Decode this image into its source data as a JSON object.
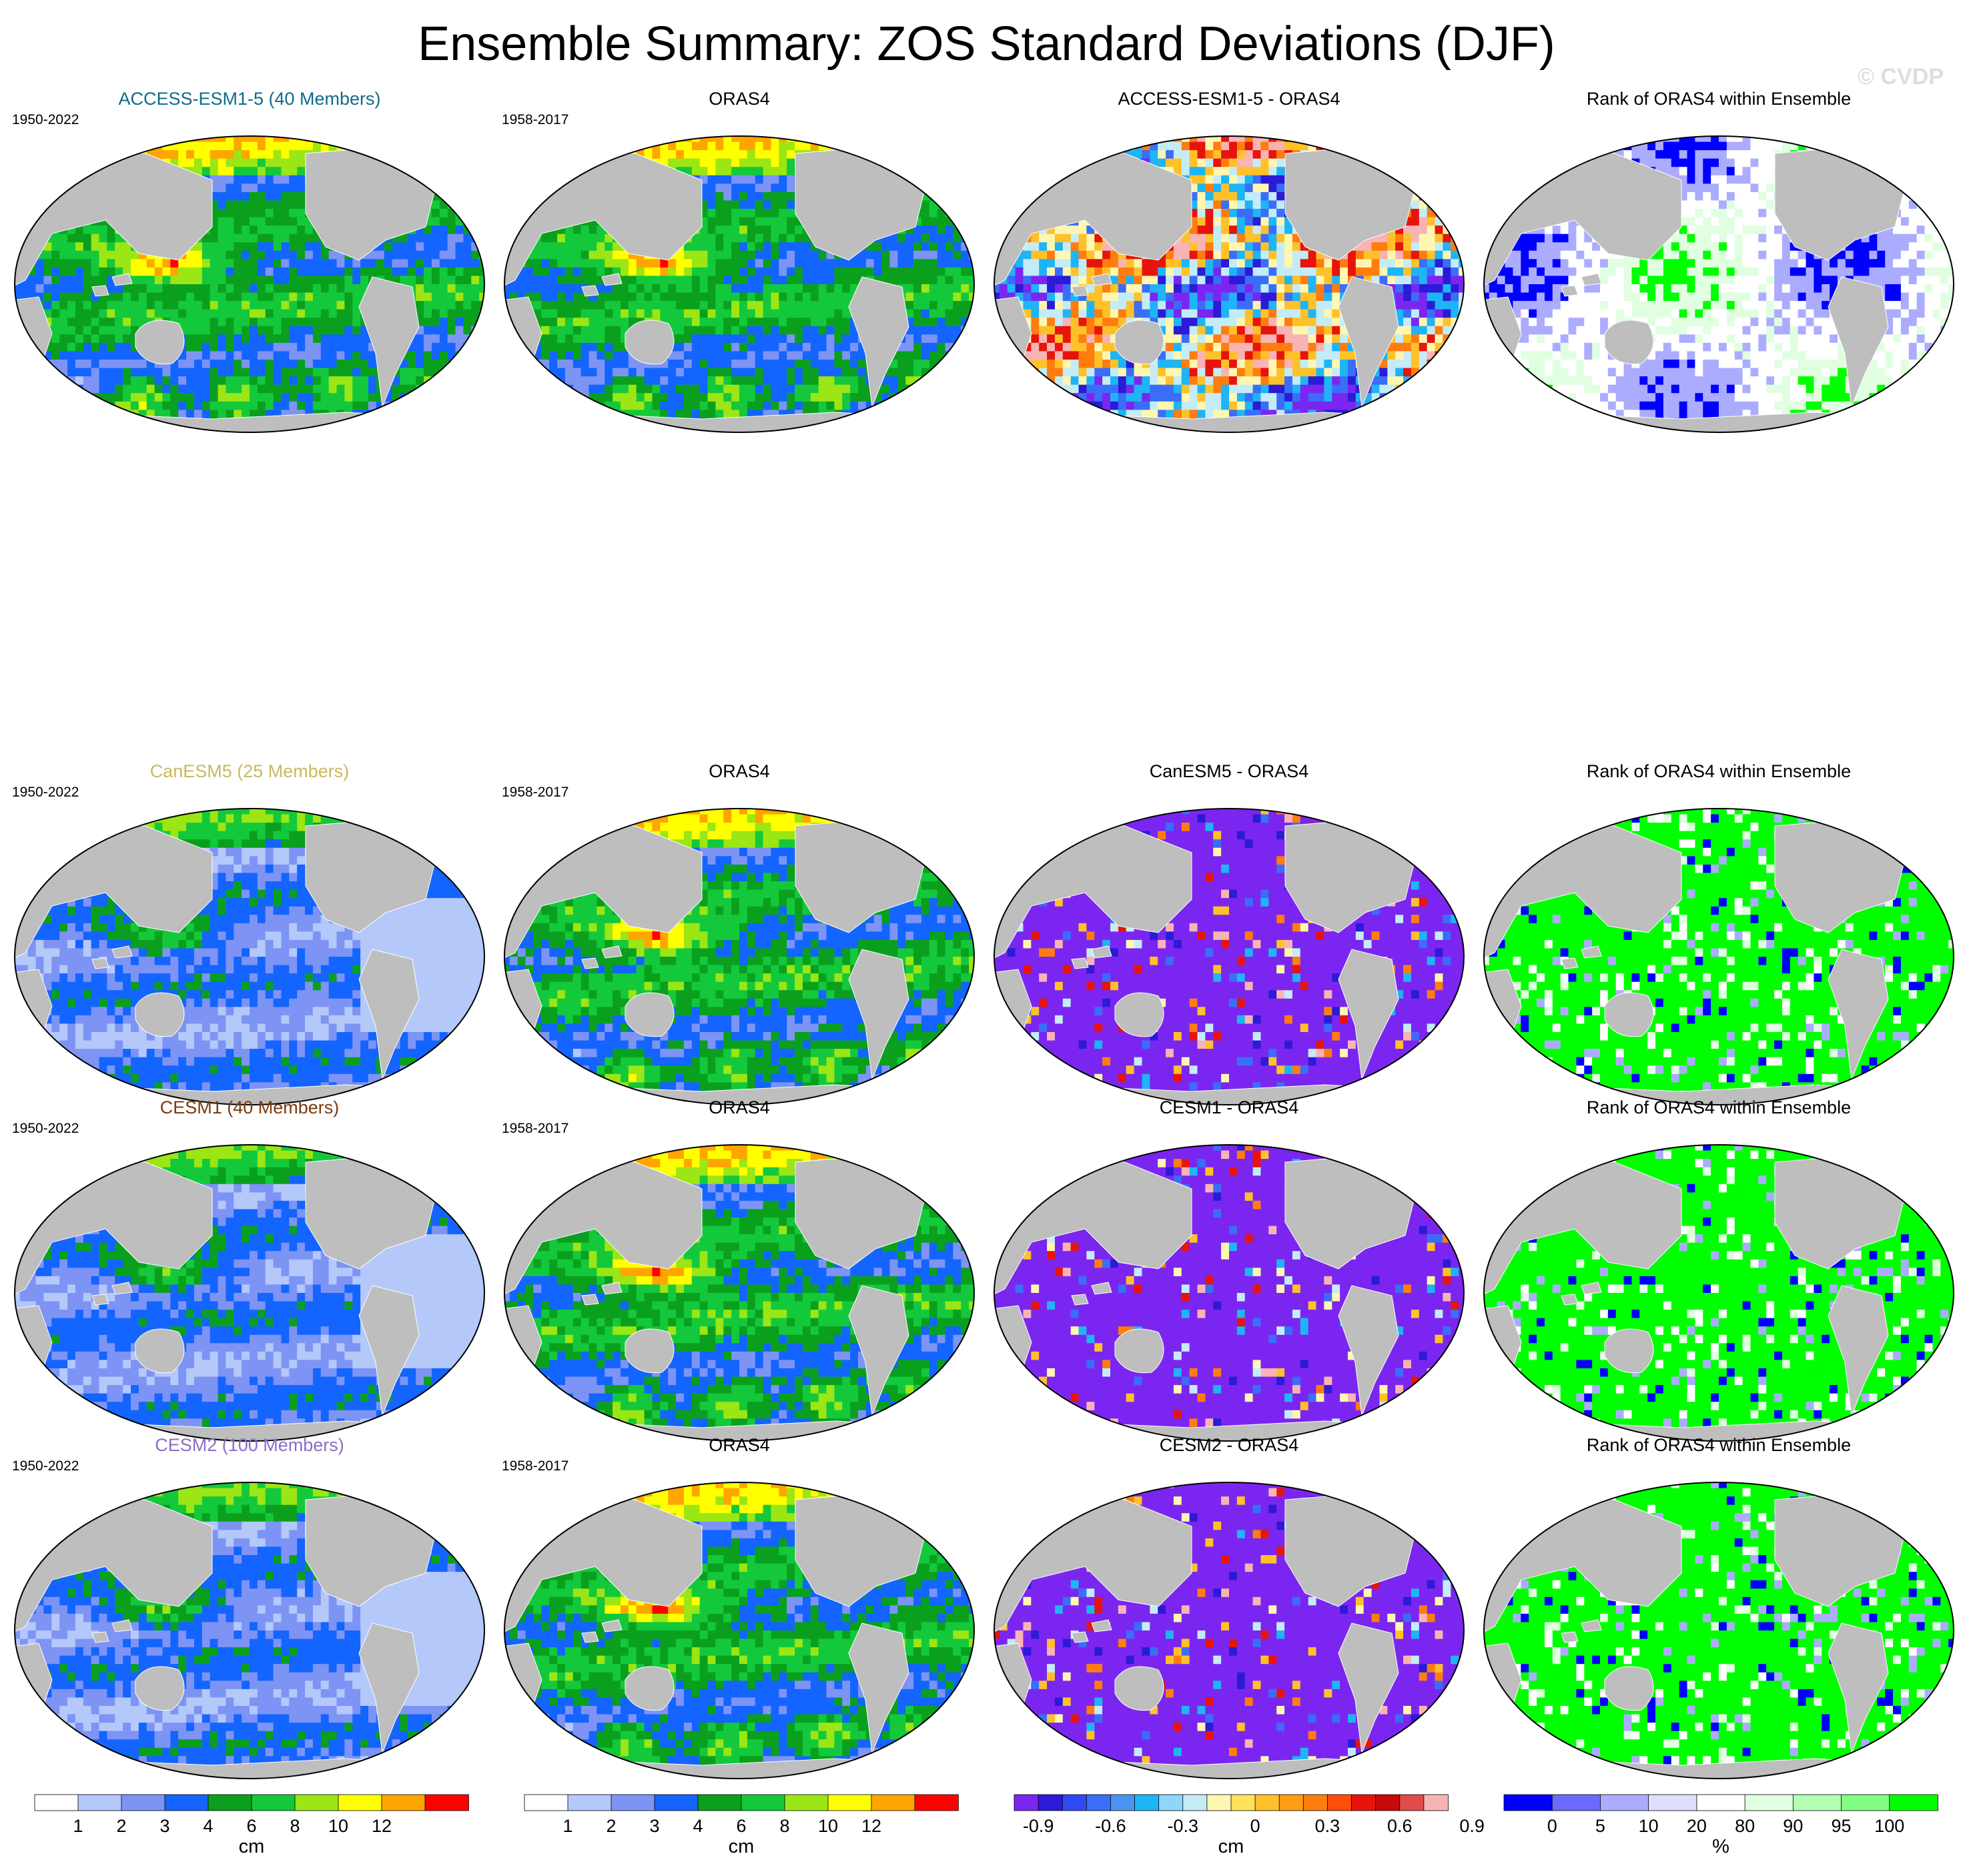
{
  "figure": {
    "title": "Ensemble Summary: ZOS Standard Deviations (DJF)",
    "watermark": "© CVDP"
  },
  "rows": [
    {
      "panels": [
        {
          "title": "ACCESS-ESM1-5 (40 Members)",
          "title_color": "#0f6b8a",
          "period": "1950-2022",
          "kind": "ens"
        },
        {
          "title": "ORAS4",
          "title_color": "#000000",
          "period": "1958-2017",
          "kind": "obs"
        },
        {
          "title": "ACCESS-ESM1-5 - ORAS4",
          "title_color": "#000000",
          "period": "",
          "kind": "diff_mixed"
        },
        {
          "title": "Rank of ORAS4 within Ensemble",
          "title_color": "#000000",
          "period": "",
          "kind": "rank_mixed"
        }
      ]
    },
    {
      "panels": [
        {
          "title": "CanESM5 (25 Members)",
          "title_color": "#c9b862",
          "period": "1950-2022",
          "kind": "ens_low"
        },
        {
          "title": "ORAS4",
          "title_color": "#000000",
          "period": "1958-2017",
          "kind": "obs"
        },
        {
          "title": "CanESM5 - ORAS4",
          "title_color": "#000000",
          "period": "",
          "kind": "diff_neg"
        },
        {
          "title": "Rank of ORAS4 within Ensemble",
          "title_color": "#000000",
          "period": "",
          "kind": "rank_high"
        }
      ]
    },
    {
      "panels": [
        {
          "title": "CESM1 (40 Members)",
          "title_color": "#7a3b12",
          "period": "1950-2022",
          "kind": "ens_low"
        },
        {
          "title": "ORAS4",
          "title_color": "#000000",
          "period": "1958-2017",
          "kind": "obs"
        },
        {
          "title": "CESM1 - ORAS4",
          "title_color": "#000000",
          "period": "",
          "kind": "diff_neg"
        },
        {
          "title": "Rank of ORAS4 within Ensemble",
          "title_color": "#000000",
          "period": "",
          "kind": "rank_high"
        }
      ]
    },
    {
      "panels": [
        {
          "title": "CESM2 (100 Members)",
          "title_color": "#8c6cc9",
          "period": "1950-2022",
          "kind": "ens_low"
        },
        {
          "title": "ORAS4",
          "title_color": "#000000",
          "period": "1958-2017",
          "kind": "obs"
        },
        {
          "title": "CESM2 - ORAS4",
          "title_color": "#000000",
          "period": "",
          "kind": "diff_neg"
        },
        {
          "title": "Rank of ORAS4 within Ensemble",
          "title_color": "#000000",
          "period": "",
          "kind": "rank_high"
        }
      ]
    }
  ],
  "colorbars": [
    {
      "name": "stddev-model",
      "colors": [
        "#ffffff",
        "#b4c8fa",
        "#7d94f5",
        "#1464ff",
        "#0aa01e",
        "#14c83c",
        "#9be614",
        "#ffff00",
        "#ffa500",
        "#ff0000"
      ],
      "labels": [
        "1",
        "2",
        "3",
        "4",
        "6",
        "8",
        "10",
        "12"
      ],
      "units": "cm"
    },
    {
      "name": "stddev-obs",
      "colors": [
        "#ffffff",
        "#b4c8fa",
        "#7d94f5",
        "#1464ff",
        "#0aa01e",
        "#14c83c",
        "#9be614",
        "#ffff00",
        "#ffa500",
        "#ff0000"
      ],
      "labels": [
        "1",
        "2",
        "3",
        "4",
        "6",
        "8",
        "10",
        "12"
      ],
      "units": "cm"
    },
    {
      "name": "difference",
      "colors": [
        "#7b26f0",
        "#2b1bd6",
        "#3049f5",
        "#3a6ef8",
        "#4a95f2",
        "#1fb4f5",
        "#8fd6f8",
        "#c4ecf7",
        "#fff7b0",
        "#ffe25a",
        "#ffc12a",
        "#ff9e14",
        "#ff7d0f",
        "#ff4e0a",
        "#e6140c",
        "#c80a0a",
        "#e04b4b",
        "#f8b4b4"
      ],
      "labels": [
        "-0.9",
        "-0.6",
        "-0.3",
        "0",
        "0.3",
        "0.6",
        "0.9"
      ],
      "units": "cm"
    },
    {
      "name": "rank",
      "colors": [
        "#0000ff",
        "#6a6aff",
        "#acacff",
        "#dedeff",
        "#ffffff",
        "#e0ffe0",
        "#b4ffb4",
        "#80ff80",
        "#00ff00"
      ],
      "labels": [
        "0",
        "5",
        "10",
        "20",
        "80",
        "90",
        "95",
        "100"
      ],
      "units": "%"
    }
  ]
}
